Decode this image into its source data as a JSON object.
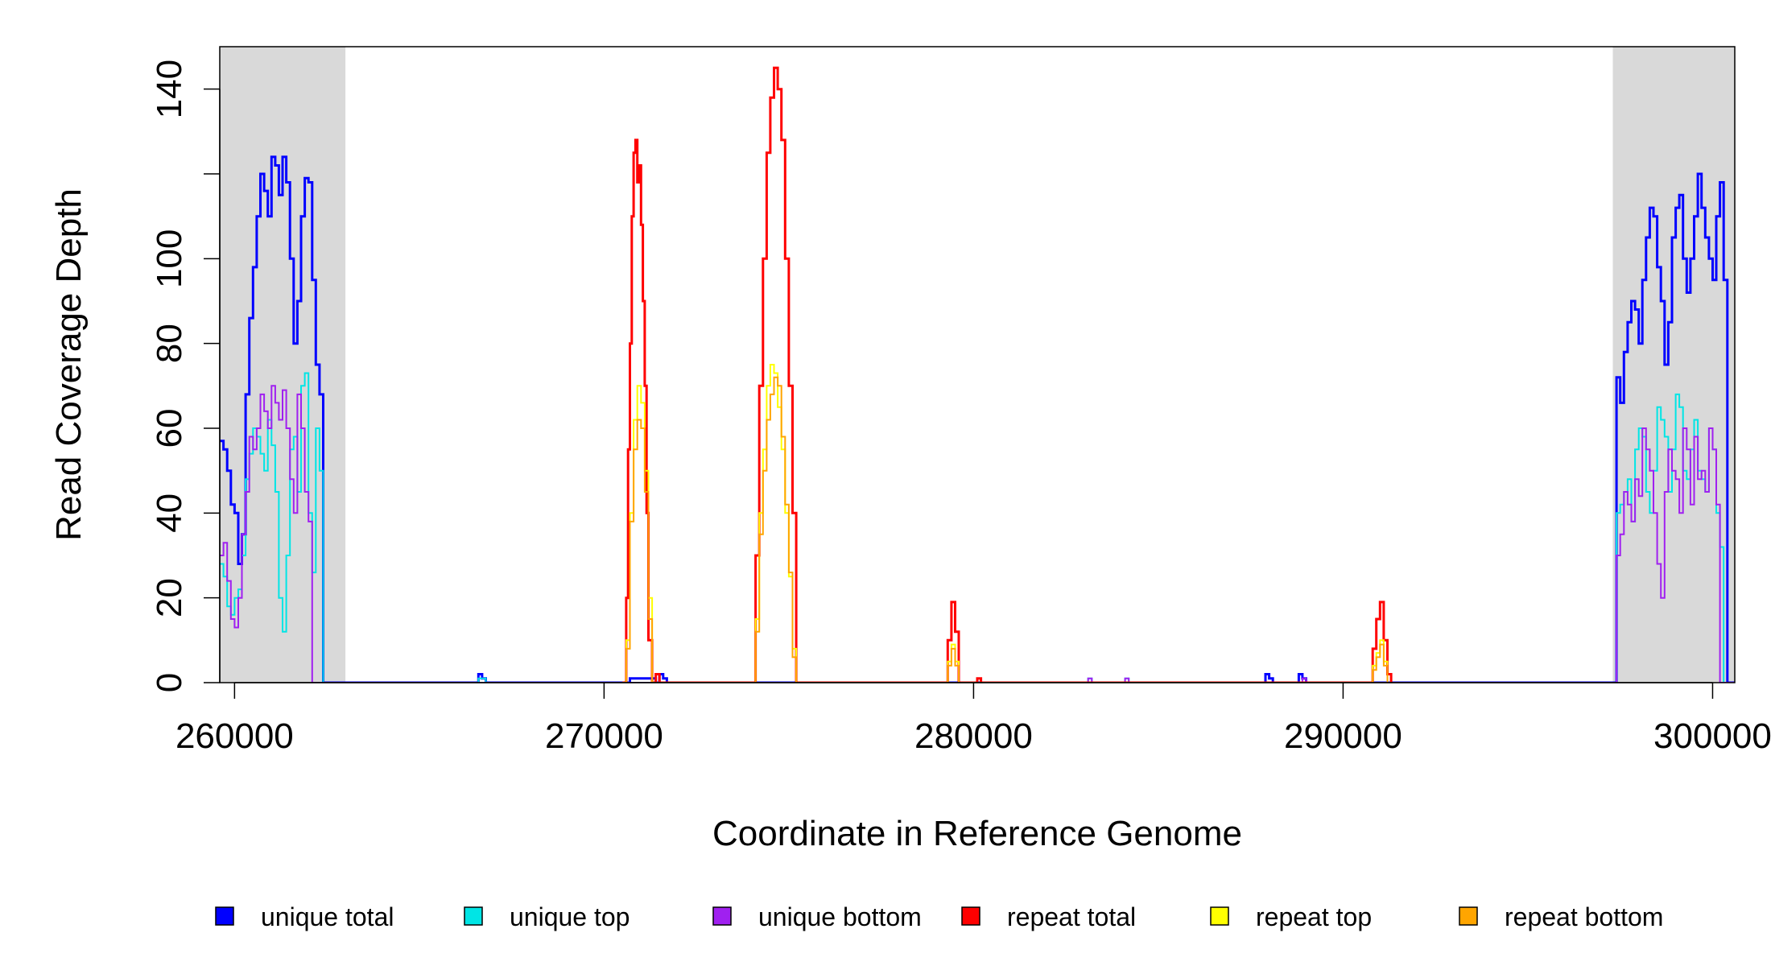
{
  "chart_data": {
    "type": "line",
    "title": "",
    "xlabel": "Coordinate in Reference Genome",
    "ylabel": "Read Coverage Depth",
    "xlim": [
      259600,
      300600
    ],
    "ylim": [
      0,
      150
    ],
    "x_ticks": [
      {
        "value": 260000,
        "label": "260000"
      },
      {
        "value": 270000,
        "label": "270000"
      },
      {
        "value": 280000,
        "label": "280000"
      },
      {
        "value": 290000,
        "label": "290000"
      },
      {
        "value": 300000,
        "label": "300000"
      }
    ],
    "y_ticks": [
      {
        "value": 0,
        "label": "0"
      },
      {
        "value": 20,
        "label": "20"
      },
      {
        "value": 40,
        "label": "40"
      },
      {
        "value": 60,
        "label": "60"
      },
      {
        "value": 80,
        "label": "80"
      },
      {
        "value": 100,
        "label": "100"
      },
      {
        "value": 120,
        "label": ""
      },
      {
        "value": 140,
        "label": "140"
      }
    ],
    "shaded_regions": [
      {
        "x0": 259600,
        "x1": 263000,
        "color": "#d9d9d9"
      },
      {
        "x0": 297300,
        "x1": 300600,
        "color": "#d9d9d9"
      }
    ],
    "legend_position": "bottom",
    "series": [
      {
        "name": "unique total",
        "color": "#0000ff",
        "x": [
          259600,
          259700,
          259800,
          259900,
          260000,
          260100,
          260200,
          260300,
          260400,
          260500,
          260600,
          260700,
          260800,
          260900,
          261000,
          261100,
          261200,
          261300,
          261400,
          261500,
          261600,
          261700,
          261800,
          261900,
          262000,
          262100,
          262200,
          262300,
          262400,
          262500,
          262600,
          262700,
          262800,
          262900,
          263000,
          263050,
          266500,
          266600,
          266700,
          266800,
          270600,
          270700,
          271400,
          271500,
          271600,
          271700,
          287800,
          287900,
          288000,
          288100,
          288700,
          288800,
          288900,
          289000,
          297300,
          297400,
          297500,
          297600,
          297700,
          297800,
          297900,
          298000,
          298100,
          298200,
          298300,
          298400,
          298500,
          298600,
          298700,
          298800,
          298900,
          299000,
          299100,
          299200,
          299300,
          299400,
          299500,
          299600,
          299700,
          299800,
          299900,
          300000,
          300100,
          300200,
          300300,
          300400,
          300500,
          300600
        ],
        "y": [
          57,
          55,
          50,
          42,
          40,
          28,
          35,
          68,
          86,
          98,
          110,
          120,
          116,
          110,
          124,
          122,
          115,
          124,
          118,
          100,
          80,
          90,
          110,
          119,
          118,
          95,
          75,
          68,
          0,
          0,
          0,
          0,
          0,
          0,
          0,
          0,
          0,
          2,
          1,
          0,
          0,
          1,
          0,
          2,
          1,
          0,
          0,
          2,
          1,
          0,
          0,
          2,
          1,
          0,
          0,
          72,
          66,
          78,
          85,
          90,
          88,
          80,
          95,
          105,
          112,
          110,
          98,
          90,
          75,
          85,
          105,
          112,
          115,
          100,
          92,
          100,
          110,
          120,
          112,
          105,
          100,
          95,
          110,
          118,
          95,
          0,
          0,
          0
        ],
        "width": 3
      },
      {
        "name": "unique top",
        "color": "#00e5e5",
        "x": [
          259600,
          259700,
          259800,
          259900,
          260000,
          260100,
          260200,
          260300,
          260400,
          260500,
          260600,
          260700,
          260800,
          260900,
          261000,
          261100,
          261200,
          261300,
          261400,
          261500,
          261600,
          261700,
          261800,
          261900,
          262000,
          262100,
          262200,
          262300,
          262400,
          262500,
          262600,
          262700,
          262800,
          262900,
          263000,
          263050,
          266500,
          266600,
          266700,
          266800,
          283000,
          283100,
          283200,
          284000,
          284100,
          284200,
          297300,
          297400,
          297500,
          297600,
          297700,
          297800,
          297900,
          298000,
          298100,
          298200,
          298300,
          298400,
          298500,
          298600,
          298700,
          298800,
          298900,
          299000,
          299100,
          299200,
          299300,
          299400,
          299500,
          299600,
          299700,
          299800,
          299900,
          300000,
          300100,
          300200,
          300300,
          300400,
          300500,
          300600
        ],
        "y": [
          28,
          25,
          18,
          16,
          20,
          22,
          30,
          48,
          54,
          60,
          58,
          54,
          50,
          62,
          56,
          45,
          20,
          12,
          30,
          55,
          58,
          45,
          70,
          73,
          40,
          26,
          60,
          50,
          0,
          0,
          0,
          0,
          0,
          0,
          0,
          0,
          0,
          1,
          1,
          0,
          0,
          1,
          0,
          0,
          1,
          0,
          0,
          40,
          42,
          45,
          48,
          38,
          55,
          60,
          58,
          45,
          40,
          50,
          65,
          62,
          58,
          45,
          55,
          68,
          65,
          50,
          48,
          55,
          62,
          50,
          48,
          45,
          60,
          55,
          40,
          32,
          0,
          0,
          0,
          0
        ],
        "width": 2
      },
      {
        "name": "unique bottom",
        "color": "#a020f0",
        "x": [
          259600,
          259700,
          259800,
          259900,
          260000,
          260100,
          260200,
          260300,
          260400,
          260500,
          260600,
          260700,
          260800,
          260900,
          261000,
          261100,
          261200,
          261300,
          261400,
          261500,
          261600,
          261700,
          261800,
          261900,
          262000,
          262100,
          262200,
          262300,
          262400,
          262500,
          262600,
          262700,
          262800,
          262900,
          263000,
          263050,
          283100,
          283200,
          284100,
          284200,
          288900,
          289000,
          297300,
          297400,
          297500,
          297600,
          297700,
          297800,
          297900,
          298000,
          298100,
          298200,
          298300,
          298400,
          298500,
          298600,
          298700,
          298800,
          298900,
          299000,
          299100,
          299200,
          299300,
          299400,
          299500,
          299600,
          299700,
          299800,
          299900,
          300000,
          300100,
          300200,
          300300,
          300400,
          300500,
          300600
        ],
        "y": [
          30,
          33,
          24,
          15,
          13,
          20,
          35,
          45,
          58,
          55,
          60,
          68,
          64,
          60,
          70,
          66,
          62,
          69,
          60,
          48,
          40,
          68,
          60,
          45,
          38,
          0,
          0,
          0,
          0,
          0,
          0,
          0,
          0,
          0,
          0,
          0,
          1,
          0,
          1,
          0,
          1,
          0,
          0,
          30,
          35,
          45,
          42,
          38,
          48,
          44,
          60,
          55,
          50,
          40,
          28,
          20,
          45,
          55,
          50,
          48,
          40,
          60,
          55,
          42,
          58,
          48,
          50,
          45,
          60,
          55,
          42,
          0,
          0,
          0,
          0,
          0
        ],
        "width": 2
      },
      {
        "name": "repeat total",
        "color": "#ff0000",
        "x": [
          270500,
          270600,
          270650,
          270700,
          270750,
          270800,
          270850,
          270900,
          270950,
          271000,
          271050,
          271100,
          271150,
          271200,
          271300,
          271400,
          271500,
          274000,
          274100,
          274200,
          274300,
          274400,
          274500,
          274600,
          274700,
          274800,
          274900,
          275000,
          275100,
          275200,
          279200,
          279300,
          279400,
          279500,
          279600,
          280100,
          280200,
          290700,
          290800,
          290900,
          291000,
          291100,
          291200,
          291300
        ],
        "y": [
          0,
          20,
          55,
          80,
          110,
          125,
          128,
          118,
          122,
          108,
          90,
          70,
          40,
          10,
          0,
          2,
          0,
          0,
          30,
          70,
          100,
          125,
          138,
          145,
          140,
          128,
          100,
          70,
          40,
          0,
          0,
          10,
          19,
          12,
          0,
          1,
          0,
          0,
          8,
          15,
          19,
          10,
          2,
          0
        ],
        "width": 3
      },
      {
        "name": "repeat top",
        "color": "#ffff00",
        "x": [
          270500,
          270600,
          270700,
          270800,
          270900,
          271000,
          271100,
          271200,
          271300,
          274000,
          274100,
          274200,
          274300,
          274400,
          274500,
          274600,
          274700,
          274800,
          274900,
          275000,
          275100,
          275200,
          279200,
          279300,
          279400,
          279500,
          279600,
          290700,
          290800,
          290900,
          291000,
          291100,
          291200
        ],
        "y": [
          0,
          10,
          40,
          62,
          70,
          66,
          50,
          20,
          0,
          0,
          15,
          40,
          55,
          70,
          75,
          73,
          65,
          55,
          40,
          25,
          8,
          0,
          0,
          5,
          9,
          5,
          0,
          0,
          4,
          7,
          10,
          5,
          0
        ],
        "width": 2
      },
      {
        "name": "repeat bottom",
        "color": "#ffa500",
        "x": [
          270500,
          270600,
          270700,
          270800,
          270900,
          271000,
          271100,
          271200,
          271300,
          274000,
          274100,
          274200,
          274300,
          274400,
          274500,
          274600,
          274700,
          274800,
          274900,
          275000,
          275100,
          275200,
          279200,
          279300,
          279400,
          279500,
          279600,
          290700,
          290800,
          290900,
          291000,
          291100,
          291200
        ],
        "y": [
          0,
          8,
          38,
          55,
          62,
          60,
          45,
          15,
          0,
          0,
          12,
          35,
          50,
          62,
          68,
          72,
          70,
          58,
          42,
          26,
          6,
          0,
          0,
          4,
          8,
          4,
          0,
          0,
          3,
          6,
          9,
          4,
          0
        ],
        "width": 2
      }
    ]
  }
}
